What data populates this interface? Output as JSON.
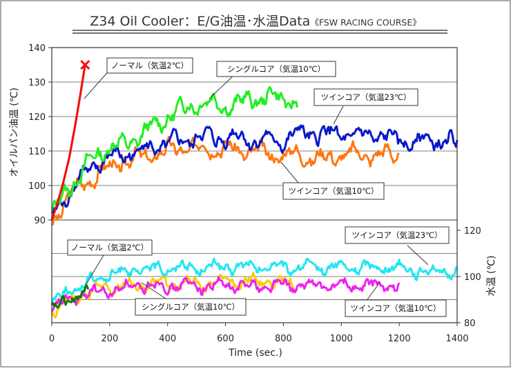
{
  "chart_data": {
    "type": "line",
    "title_main": "Z34 Oil Cooler：E/G油温･水温Data",
    "title_sub": "《FSW RACING COURSE》",
    "xlabel": "Time (sec.)",
    "xlim": [
      0,
      1400
    ],
    "x_ticks": [
      "0",
      "200",
      "400",
      "600",
      "800",
      "1000",
      "1200",
      "1400"
    ],
    "grid": true,
    "upper_panel": {
      "ylabel": "オイルパン油温 (℃)",
      "ylim": [
        90,
        140
      ],
      "y_ticks": [
        "90",
        "100",
        "110",
        "120",
        "130",
        "140"
      ],
      "series": [
        {
          "name": "ノーマル（気温2℃）",
          "color": "#ee1111",
          "marker_end": "x",
          "x": [
            0,
            20,
            40,
            60,
            80,
            100,
            115
          ],
          "y": [
            90,
            95,
            101,
            108,
            117,
            127,
            135
          ]
        },
        {
          "name": "シングルコア（気温10℃）",
          "color": "#22ee22",
          "x": [
            0,
            50,
            100,
            150,
            200,
            250,
            300,
            350,
            400,
            450,
            500,
            550,
            600,
            650,
            700,
            750,
            800,
            850
          ],
          "y": [
            91,
            99,
            103,
            109,
            111,
            112,
            114,
            117,
            120,
            122,
            124,
            124,
            123,
            124,
            125,
            126,
            125,
            124
          ]
        },
        {
          "name": "ツインコア（気温23℃）",
          "color": "#0a17cc",
          "x": [
            0,
            50,
            100,
            150,
            200,
            250,
            300,
            350,
            400,
            450,
            500,
            550,
            600,
            650,
            700,
            750,
            800,
            850,
            900,
            950,
            1000,
            1050,
            1100,
            1150,
            1200,
            1250,
            1300,
            1350,
            1400
          ],
          "y": [
            91,
            97,
            102,
            106,
            108,
            109,
            110,
            111,
            112,
            113,
            114,
            114,
            114,
            114,
            113,
            113,
            113,
            115,
            115,
            115,
            115,
            114,
            115,
            114,
            113,
            113,
            113,
            113,
            112
          ]
        },
        {
          "name": "ツインコア（気温10℃）",
          "color": "#ff7711",
          "x": [
            0,
            50,
            100,
            150,
            200,
            250,
            300,
            350,
            400,
            450,
            500,
            550,
            600,
            650,
            700,
            750,
            800,
            850,
            900,
            950,
            1000,
            1050,
            1100,
            1150,
            1200
          ],
          "y": [
            89,
            96,
            100,
            103,
            105,
            107,
            108,
            109,
            110,
            111,
            111,
            111,
            111,
            110,
            110,
            109,
            109,
            109,
            108,
            108,
            109,
            109,
            109,
            109,
            109
          ]
        }
      ],
      "callouts": [
        "ノーマル（気温2℃）",
        "シングルコア（気温10℃）",
        "ツインコア（気温23℃）",
        "ツインコア（気温10℃）"
      ]
    },
    "lower_panel": {
      "ylabel": "水温 (℃)",
      "ylim": [
        80,
        120
      ],
      "y_ticks": [
        "80",
        "100",
        "120"
      ],
      "series": [
        {
          "name": "ノーマル（気温2℃）",
          "color": "#117711",
          "x": [
            0,
            30,
            60,
            90,
            120,
            130
          ],
          "y": [
            86,
            88,
            90,
            92,
            93,
            94
          ]
        },
        {
          "name": "シングルコア（気温10℃）",
          "color": "#ffcc00",
          "x": [
            0,
            50,
            100,
            150,
            200,
            250,
            300,
            350,
            400,
            450,
            500,
            550,
            600,
            650,
            700,
            750,
            800,
            850
          ],
          "y": [
            85,
            88,
            92,
            94,
            95,
            96,
            96,
            97,
            97,
            97,
            97,
            97,
            98,
            98,
            98,
            98,
            97,
            97
          ]
        },
        {
          "name": "ツインコア（気温23℃）",
          "color": "#22e5f2",
          "x": [
            0,
            50,
            100,
            150,
            200,
            250,
            300,
            350,
            400,
            450,
            500,
            550,
            600,
            650,
            700,
            750,
            800,
            850,
            900,
            950,
            1000,
            1050,
            1100,
            1150,
            1200,
            1250,
            1300,
            1350,
            1400
          ],
          "y": [
            89,
            93,
            96,
            99,
            101,
            102,
            103,
            103,
            104,
            104,
            104,
            104,
            104,
            104,
            104,
            104,
            104,
            104,
            104,
            104,
            104,
            104,
            104,
            104,
            104,
            103,
            102,
            102,
            102
          ]
        },
        {
          "name": "ツインコア（気温10℃）",
          "color": "#ee22ee",
          "x": [
            0,
            50,
            100,
            150,
            200,
            250,
            300,
            350,
            400,
            450,
            500,
            550,
            600,
            650,
            700,
            750,
            800,
            850,
            900,
            950,
            1000,
            1050,
            1100,
            1150,
            1200
          ],
          "y": [
            86,
            89,
            92,
            93,
            94,
            95,
            96,
            96,
            96,
            96,
            96,
            96,
            96,
            96,
            96,
            96,
            96,
            96,
            96,
            96,
            96,
            96,
            96,
            96,
            96
          ]
        }
      ],
      "callouts": [
        "ノーマル（気温2℃）",
        "シングルコア（気温10℃）",
        "ツインコア（気温23℃）",
        "ツインコア（気温10℃）"
      ]
    }
  }
}
